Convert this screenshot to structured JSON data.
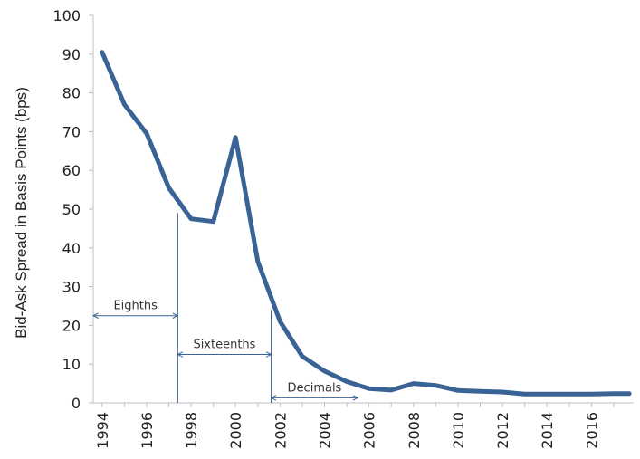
{
  "chart_data": {
    "type": "line",
    "title": "",
    "xlabel": "",
    "ylabel": "Bid-Ask Spread in Basis Points (bps)",
    "ylim": [
      0,
      100
    ],
    "xlim": [
      1993.6,
      2017.9
    ],
    "yticks": [
      0,
      10,
      20,
      30,
      40,
      50,
      60,
      70,
      80,
      90,
      100
    ],
    "xticks": [
      "1994",
      "1996",
      "1998",
      "2000",
      "2002",
      "2004",
      "2006",
      "2008",
      "2010",
      "2012",
      "2014",
      "2016"
    ],
    "grid": false,
    "legend": "none",
    "series": [
      {
        "color": "#3a6395",
        "points": [
          [
            1994,
            90.5
          ],
          [
            1995,
            77
          ],
          [
            1996,
            69.5
          ],
          [
            1997,
            55.5
          ],
          [
            1998,
            47.5
          ],
          [
            1999,
            46.8
          ],
          [
            2000,
            68.5
          ],
          [
            2001,
            36.5
          ],
          [
            2002,
            21
          ],
          [
            2003,
            12
          ],
          [
            2004,
            8.2
          ],
          [
            2005,
            5.5
          ],
          [
            2006,
            3.7
          ],
          [
            2007,
            3.3
          ],
          [
            2008,
            5
          ],
          [
            2009,
            4.5
          ],
          [
            2010,
            3.2
          ],
          [
            2011,
            3
          ],
          [
            2012,
            2.8
          ],
          [
            2013,
            2.3
          ],
          [
            2014,
            2.3
          ],
          [
            2015,
            2.3
          ],
          [
            2016,
            2.3
          ],
          [
            2017,
            2.4
          ],
          [
            2017.7,
            2.4
          ]
        ]
      }
    ],
    "annotations": [
      {
        "label": "Eighths",
        "x_start": 1993.6,
        "x_end": 1997.4,
        "y": 22.5,
        "divider_from_y": 22.5
      },
      {
        "label": "Sixteenths",
        "x_start": 1997.4,
        "x_end": 2001.6,
        "y": 12.5,
        "divider_from_y": 49
      },
      {
        "label": "Decimals",
        "x_start": 2001.6,
        "x_end": 2005.5,
        "y": 1.3,
        "divider_from_y": 24
      }
    ],
    "colors": {
      "line": "#3a6395",
      "annotation": "#3a6395",
      "axis": "#bfbfbf",
      "text": "#222222"
    }
  }
}
